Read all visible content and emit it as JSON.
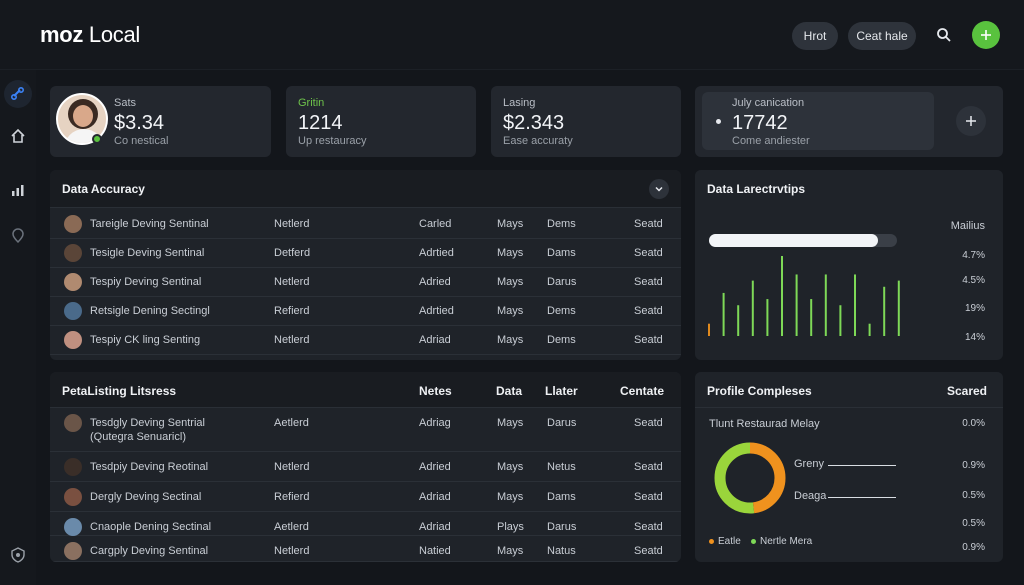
{
  "app": {
    "title_bold": "moz",
    "title_rest": " Local",
    "btn1": "Hrot",
    "btn2": "Ceat hale"
  },
  "icons": {
    "search": "search-icon",
    "add": "plus-icon",
    "brand_accent": "#59c23e"
  },
  "stats": [
    {
      "label": "Sats",
      "value": "$3.34",
      "sub": "Co nestical"
    },
    {
      "label": "Gritin",
      "value": "1214",
      "sub": "Up restauracy"
    },
    {
      "label": "Lasing",
      "value": "$2.343",
      "sub": "Ease accuraty"
    },
    {
      "label": "July canication",
      "value": "17742",
      "sub": "Come andiester"
    }
  ],
  "accuracy": {
    "title": "Data Accuracy",
    "rows": [
      {
        "name": "Tareigle Deving Sentinal",
        "c1": "Netlerd",
        "c2": "Carled",
        "c3": "Mays",
        "c4": "Dems",
        "c5": "Seatd"
      },
      {
        "name": "Tesigle Deving Sentinal",
        "c1": "Detferd",
        "c2": "Adrtied",
        "c3": "Mays",
        "c4": "Dams",
        "c5": "Seatd"
      },
      {
        "name": "Tespiy Deving Sentinal",
        "c1": "Netlerd",
        "c2": "Adried",
        "c3": "Mays",
        "c4": "Darus",
        "c5": "Seatd"
      },
      {
        "name": "Retsigle Dening Sectingl",
        "c1": "Refierd",
        "c2": "Adrtied",
        "c3": "Mays",
        "c4": "Dems",
        "c5": "Seatd"
      },
      {
        "name": "Tespiy CK ling Senting",
        "c1": "Netlerd",
        "c2": "Adriad",
        "c3": "Mays",
        "c4": "Dems",
        "c5": "Seatd"
      }
    ]
  },
  "listing": {
    "title": "PetaListing Litsress",
    "headers": [
      "Netes",
      "Data",
      "Llater",
      "Centate"
    ],
    "rows": [
      {
        "name": "Tesdgly Deving Sentrial",
        "name2": "(Qutegra Senuaricl)",
        "c1": "Aetlerd",
        "c2": "Adriag",
        "c3": "Mays",
        "c4": "Darus",
        "c5": "Seatd"
      },
      {
        "name": "Tesdpiy Deving Reotinal",
        "c1": "Netlerd",
        "c2": "Adried",
        "c3": "Mays",
        "c4": "Netus",
        "c5": "Seatd"
      },
      {
        "name": "Dergly Deving Sectinal",
        "c1": "Refierd",
        "c2": "Adriad",
        "c3": "Mays",
        "c4": "Dams",
        "c5": "Seatd"
      },
      {
        "name": "Cnaople Dening Sectinal",
        "c1": "Aetlerd",
        "c2": "Adriad",
        "c3": "Plays",
        "c4": "Darus",
        "c5": "Seatd"
      },
      {
        "name": "Cargply Deving Sentinal",
        "c1": "Netlerd",
        "c2": "Natied",
        "c3": "Mays",
        "c4": "Natus",
        "c5": "Seatd"
      }
    ]
  },
  "chart_data": [
    {
      "type": "bar",
      "title": "Data Larectrvtips",
      "side_header": "Mailius",
      "side_values": [
        "4.7%",
        "4.5%",
        "19%",
        "14%"
      ],
      "progress": 0.9,
      "values": [
        2,
        7,
        5,
        9,
        6,
        13,
        10,
        6,
        10,
        5,
        10,
        2,
        8,
        9
      ],
      "colors": [
        "#e08a1e",
        "#7ed957",
        "#7ed957",
        "#7ed957",
        "#7ed957",
        "#7ed957",
        "#7ed957",
        "#7ed957",
        "#7ed957",
        "#7ed957",
        "#7ed957",
        "#7ed957",
        "#7ed957",
        "#7ed957"
      ]
    },
    {
      "type": "pie",
      "title": "Profile Compleses",
      "side_header": "Scared",
      "subtitle": "Tlunt Restaurad Melay",
      "slices": [
        {
          "name": "Greny",
          "value": 48,
          "color": "#f0921e"
        },
        {
          "name": "Deaga",
          "value": 52,
          "color": "#9ad53b"
        }
      ],
      "side_values": [
        "0.0%",
        "0.9%",
        "0.5%",
        "0.5%",
        "0.9%"
      ],
      "legend": [
        {
          "label": "Eatle",
          "color": "#f0921e"
        },
        {
          "label": "Nertle Mera",
          "color": "#7ed957"
        }
      ]
    }
  ]
}
